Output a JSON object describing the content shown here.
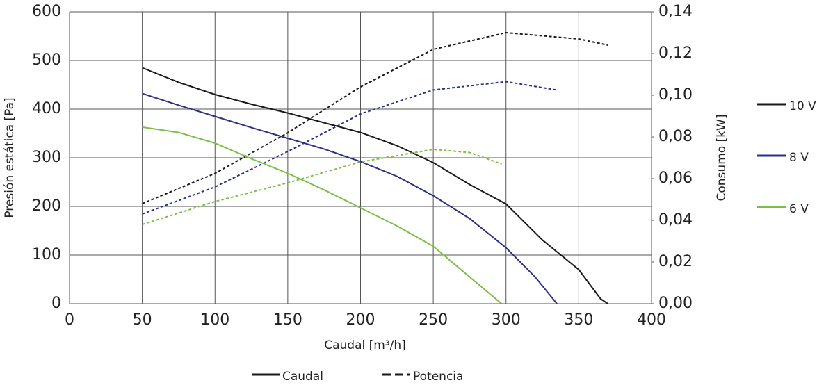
{
  "chart_data": {
    "type": "line",
    "x_label": "Caudal [m³/h]",
    "y_label": "Presión estática [Pa]",
    "y2_label": "Consumo [kW]",
    "xlim": [
      0,
      400
    ],
    "xticks": [
      0,
      50,
      100,
      150,
      200,
      250,
      300,
      350,
      400
    ],
    "ylim": [
      0,
      600
    ],
    "yticks": [
      0,
      100,
      200,
      300,
      400,
      500,
      600
    ],
    "y2lim": [
      0,
      0.14
    ],
    "y2ticks": [
      {
        "value": 0,
        "label": "0,00"
      },
      {
        "value": 0.02,
        "label": "0,02"
      },
      {
        "value": 0.04,
        "label": "0,04"
      },
      {
        "value": 0.06,
        "label": "0,06"
      },
      {
        "value": 0.08,
        "label": "0,08"
      },
      {
        "value": 0.1,
        "label": "0,10"
      },
      {
        "value": 0.12,
        "label": "0,12"
      },
      {
        "value": 0.14,
        "label": "0,14"
      }
    ],
    "grid": true,
    "legend_position": "right",
    "series": [
      {
        "name": "10 V",
        "color": "#1a1a1a",
        "x": [
          50,
          75,
          100,
          125,
          150,
          175,
          200,
          225,
          250,
          275,
          300,
          325,
          350,
          365,
          370
        ],
        "values": [
          485,
          455,
          430,
          410,
          392,
          372,
          352,
          325,
          290,
          245,
          205,
          131,
          70,
          10,
          0
        ],
        "power_x": [
          50,
          100,
          150,
          200,
          250,
          300,
          350,
          370
        ],
        "power": [
          0.048,
          0.0625,
          0.082,
          0.104,
          0.122,
          0.13,
          0.127,
          0.124
        ]
      },
      {
        "name": "8 V",
        "color": "#2b2f8a",
        "x": [
          50,
          75,
          100,
          125,
          150,
          175,
          200,
          225,
          250,
          275,
          300,
          320,
          335
        ],
        "values": [
          432,
          408,
          385,
          362,
          340,
          318,
          292,
          262,
          222,
          175,
          115,
          55,
          0
        ],
        "power_x": [
          50,
          100,
          150,
          200,
          250,
          300,
          335
        ],
        "power": [
          0.043,
          0.056,
          0.073,
          0.091,
          0.1025,
          0.1065,
          0.1025
        ]
      },
      {
        "name": "6 V",
        "color": "#7cbf45",
        "x": [
          50,
          75,
          100,
          125,
          150,
          175,
          200,
          225,
          250,
          275,
          297
        ],
        "values": [
          363,
          352,
          330,
          298,
          268,
          234,
          197,
          160,
          118,
          55,
          0
        ],
        "power_x": [
          50,
          100,
          150,
          200,
          250,
          275,
          297
        ],
        "power": [
          0.038,
          0.049,
          0.058,
          0.068,
          0.074,
          0.0725,
          0.067
        ]
      }
    ],
    "line_styles": [
      {
        "label": "Caudal",
        "dashed": false
      },
      {
        "label": "Potencia",
        "dashed": true
      }
    ]
  }
}
